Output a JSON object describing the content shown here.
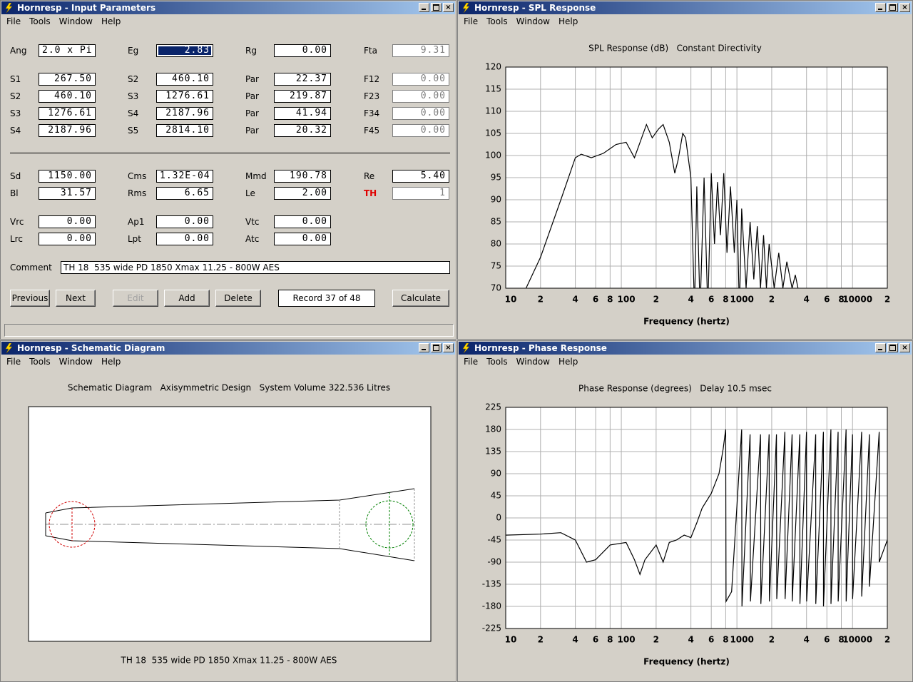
{
  "input": {
    "title": "Hornresp - Input Parameters",
    "menu": [
      "File",
      "Tools",
      "Window",
      "Help"
    ],
    "rows": [
      [
        {
          "label": "Ang",
          "value": "2.0 x Pi"
        },
        {
          "label": "Eg",
          "value": "2.83"
        },
        {
          "label": "Rg",
          "value": "0.00"
        },
        {
          "label": "Fta",
          "value": "9.31"
        }
      ],
      [
        {
          "label": "S1",
          "value": "267.50"
        },
        {
          "label": "S2",
          "value": "460.10"
        },
        {
          "label": "Par",
          "value": "22.37"
        },
        {
          "label": "F12",
          "value": "0.00"
        }
      ],
      [
        {
          "label": "S2",
          "value": "460.10"
        },
        {
          "label": "S3",
          "value": "1276.61"
        },
        {
          "label": "Par",
          "value": "219.87"
        },
        {
          "label": "F23",
          "value": "0.00"
        }
      ],
      [
        {
          "label": "S3",
          "value": "1276.61"
        },
        {
          "label": "S4",
          "value": "2187.96"
        },
        {
          "label": "Par",
          "value": "41.94"
        },
        {
          "label": "F34",
          "value": "0.00"
        }
      ],
      [
        {
          "label": "S4",
          "value": "2187.96"
        },
        {
          "label": "S5",
          "value": "2814.10"
        },
        {
          "label": "Par",
          "value": "20.32"
        },
        {
          "label": "F45",
          "value": "0.00"
        }
      ],
      [
        {
          "label": "Sd",
          "value": "1150.00"
        },
        {
          "label": "Cms",
          "value": "1.32E-04"
        },
        {
          "label": "Mmd",
          "value": "190.78"
        },
        {
          "label": "Re",
          "value": "5.40"
        }
      ],
      [
        {
          "label": "Bl",
          "value": "31.57"
        },
        {
          "label": "Rms",
          "value": "6.65"
        },
        {
          "label": "Le",
          "value": "2.00"
        },
        {
          "label": "TH",
          "value": "1"
        }
      ],
      [
        {
          "label": "Vrc",
          "value": "0.00"
        },
        {
          "label": "Ap1",
          "value": "0.00"
        },
        {
          "label": "Vtc",
          "value": "0.00"
        }
      ],
      [
        {
          "label": "Lrc",
          "value": "0.00"
        },
        {
          "label": "Lpt",
          "value": "0.00"
        },
        {
          "label": "Atc",
          "value": "0.00"
        }
      ]
    ],
    "comment_label": "Comment",
    "comment": "TH 18  535 wide PD 1850 Xmax 11.25 - 800W AES",
    "buttons": [
      "Previous",
      "Next",
      "Edit",
      "Add",
      "Delete"
    ],
    "record": "Record 37 of 48",
    "calculate": "Calculate"
  },
  "spl": {
    "title": "Hornresp - SPL Response",
    "menu": [
      "File",
      "Tools",
      "Window",
      "Help"
    ],
    "chart": {
      "type": "line",
      "title": "SPL Response (dB)   Constant Directivity",
      "xlabel": "Frequency (hertz)",
      "xlog": true,
      "grid": true,
      "color": "#000000",
      "xlim": [
        10,
        20000
      ],
      "xticks": [
        10,
        {
          "value": 20,
          "label": "2"
        },
        {
          "value": 40,
          "label": "4"
        },
        {
          "value": 60,
          "label": "6"
        },
        {
          "value": 80,
          "label": "8"
        },
        100,
        {
          "value": 200,
          "label": "2"
        },
        {
          "value": 400,
          "label": "4"
        },
        {
          "value": 600,
          "label": "6"
        },
        {
          "value": 800,
          "label": "8"
        },
        1000,
        {
          "value": 2000,
          "label": "2"
        },
        {
          "value": 4000,
          "label": "4"
        },
        {
          "value": 6000,
          "label": "6"
        },
        {
          "value": 8000,
          "label": "8"
        },
        10000,
        {
          "value": 20000,
          "label": "2"
        }
      ],
      "ylim": [
        70,
        120
      ],
      "yticks": [
        70,
        75,
        80,
        85,
        90,
        95,
        100,
        105,
        110,
        115,
        120
      ],
      "x": [
        15,
        20,
        30,
        40,
        45,
        55,
        70,
        90,
        110,
        130,
        150,
        165,
        185,
        210,
        230,
        260,
        290,
        310,
        340,
        360,
        400,
        430,
        450,
        480,
        520,
        560,
        600,
        640,
        680,
        720,
        770,
        820,
        880,
        950,
        1000,
        1050,
        1100,
        1200,
        1300,
        1400,
        1500,
        1600,
        1700,
        1800,
        1900,
        2100,
        2300,
        2500,
        2700,
        3000,
        3200,
        3500
      ],
      "values": [
        70,
        77,
        90,
        99.5,
        100.3,
        99.5,
        100.5,
        102.5,
        103,
        99.5,
        104,
        107,
        104,
        106,
        107,
        103,
        96,
        99,
        105,
        104,
        95,
        65,
        93,
        65,
        95,
        65,
        96,
        80,
        94,
        82,
        96,
        78,
        93,
        78,
        90,
        65,
        88,
        70,
        85,
        72,
        84,
        70,
        82,
        70,
        80,
        70,
        78,
        70,
        76,
        70,
        73,
        68
      ]
    }
  },
  "schematic": {
    "title": "Hornresp - Schematic Diagram",
    "menu": [
      "File",
      "Tools",
      "Window",
      "Help"
    ],
    "heading": "Schematic Diagram   Axisymmetric Design   System Volume 322.536 Litres",
    "caption": "TH 18  535 wide PD 1850 Xmax 11.25 - 800W AES"
  },
  "phase": {
    "title": "Hornresp - Phase Response",
    "menu": [
      "File",
      "Tools",
      "Window",
      "Help"
    ],
    "chart": {
      "type": "line",
      "title": "Phase Response (degrees)   Delay 10.5 msec",
      "xlabel": "Frequency (hertz)",
      "xlog": true,
      "grid": true,
      "color": "#000000",
      "xlim": [
        10,
        20000
      ],
      "xticks": [
        10,
        {
          "value": 20,
          "label": "2"
        },
        {
          "value": 40,
          "label": "4"
        },
        {
          "value": 60,
          "label": "6"
        },
        {
          "value": 80,
          "label": "8"
        },
        100,
        {
          "value": 200,
          "label": "2"
        },
        {
          "value": 400,
          "label": "4"
        },
        {
          "value": 600,
          "label": "6"
        },
        {
          "value": 800,
          "label": "8"
        },
        1000,
        {
          "value": 2000,
          "label": "2"
        },
        {
          "value": 4000,
          "label": "4"
        },
        {
          "value": 6000,
          "label": "6"
        },
        {
          "value": 8000,
          "label": "8"
        },
        10000,
        {
          "value": 20000,
          "label": "2"
        }
      ],
      "ylim": [
        -225,
        225
      ],
      "yticks": [
        -225,
        -180,
        -135,
        -90,
        -45,
        0,
        45,
        90,
        135,
        180,
        225
      ],
      "x": [
        10,
        20,
        30,
        40,
        50,
        60,
        80,
        110,
        130,
        145,
        160,
        200,
        230,
        260,
        300,
        350,
        400,
        450,
        500,
        600,
        700,
        760,
        800,
        805,
        900,
        1100,
        1105,
        1300,
        1310,
        1600,
        1610,
        1900,
        1910,
        2200,
        2210,
        2600,
        2610,
        3000,
        3010,
        3500,
        3510,
        4000,
        4010,
        4800,
        4810,
        5600,
        5610,
        6500,
        6510,
        7500,
        7510,
        8800,
        8810,
        10000,
        10010,
        12000,
        12010,
        14000,
        14010,
        17000,
        17010,
        20000
      ],
      "values": [
        -35,
        -33,
        -30,
        -45,
        -90,
        -85,
        -55,
        -50,
        -85,
        -115,
        -85,
        -55,
        -90,
        -50,
        -45,
        -35,
        -40,
        -10,
        20,
        50,
        90,
        140,
        180,
        -170,
        -150,
        180,
        -180,
        170,
        -170,
        170,
        -175,
        170,
        -170,
        170,
        -165,
        175,
        -165,
        170,
        -170,
        170,
        -175,
        175,
        -170,
        170,
        -175,
        175,
        -180,
        180,
        -175,
        175,
        -170,
        180,
        -170,
        170,
        -165,
        175,
        -160,
        170,
        -140,
        175,
        -90,
        -45
      ]
    }
  }
}
